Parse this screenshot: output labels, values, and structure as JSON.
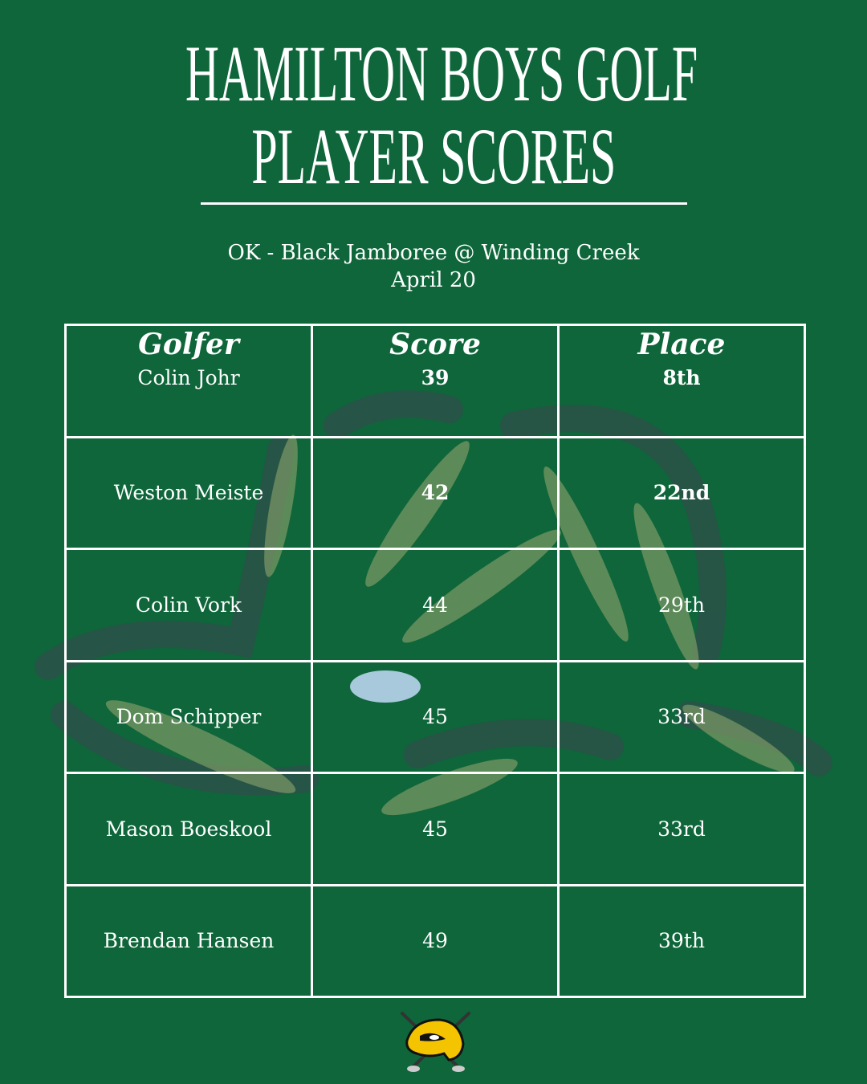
{
  "header": {
    "title_line1": "HAMILTON BOYS GOLF",
    "title_line2": "PLAYER SCORES"
  },
  "event": {
    "name": "OK - Black Jamboree @ Winding Creek",
    "date": "April 20"
  },
  "table": {
    "columns": [
      "Golfer",
      "Score",
      "Place"
    ],
    "rows": [
      {
        "golfer": "Colin Johr",
        "score": "39",
        "place": "8th"
      },
      {
        "golfer": "Weston Meiste",
        "score": "42",
        "place": "22nd"
      },
      {
        "golfer": "Colin Vork",
        "score": "44",
        "place": "29th"
      },
      {
        "golfer": "Dom Schipper",
        "score": "45",
        "place": "33rd"
      },
      {
        "golfer": "Mason Boeskool",
        "score": "45",
        "place": "33rd"
      },
      {
        "golfer": "Brendan Hansen",
        "score": "49",
        "place": "39th"
      }
    ]
  },
  "colors": {
    "background": "#0e663a",
    "text": "#ffffff",
    "logo_yellow": "#f5c400"
  },
  "logo": {
    "icon": "hawk-mascot-with-crossed-golf-clubs"
  }
}
